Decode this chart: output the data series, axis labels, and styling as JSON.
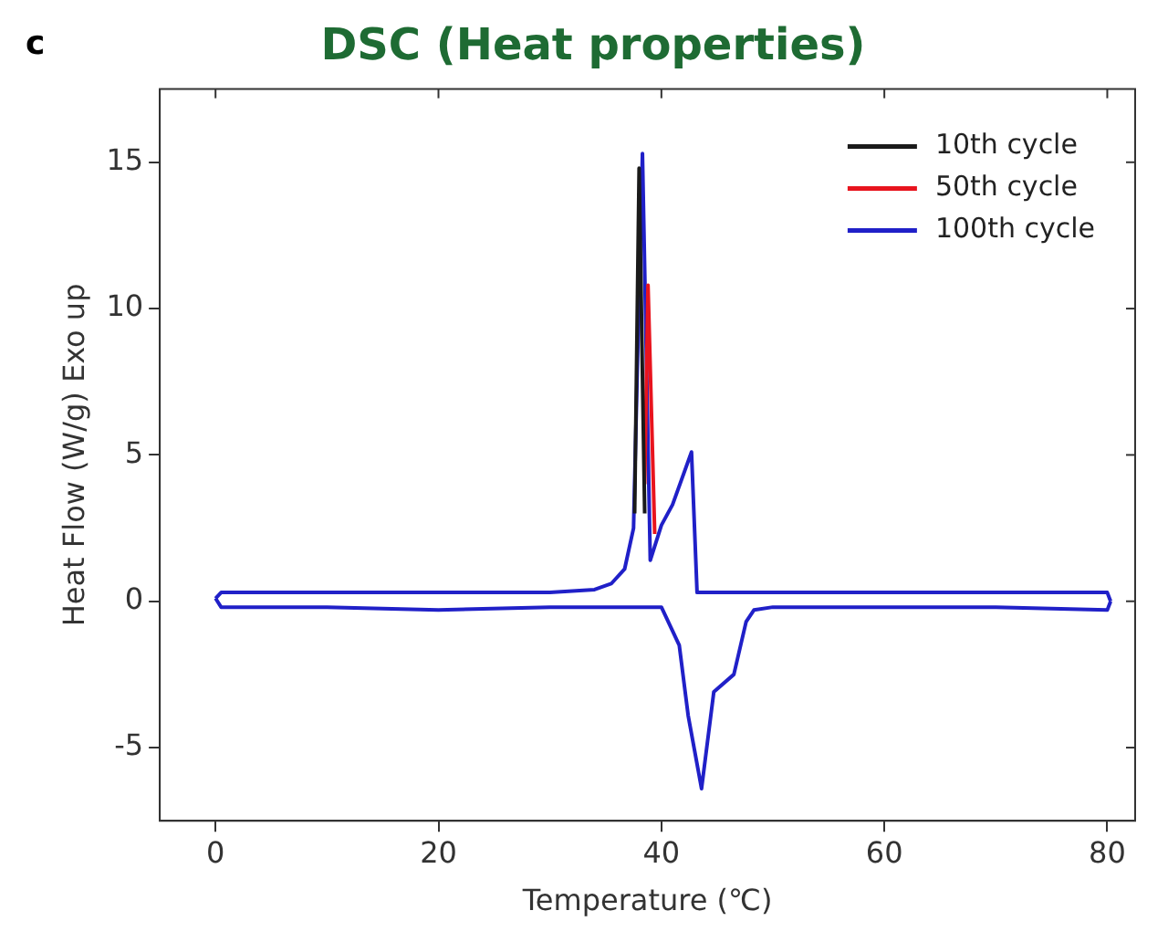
{
  "chart_data": {
    "type": "line",
    "title": "DSC (Heat properties)",
    "xlabel": "Temperature (℃)",
    "ylabel": "Heat Flow (W/g) Exo up",
    "annotations": [
      "c"
    ],
    "xlim": [
      -5,
      82.5
    ],
    "ylim": [
      -7.5,
      17.5
    ],
    "xticks": [
      0,
      20,
      40,
      60,
      80
    ],
    "yticks": [
      -5,
      0,
      5,
      10,
      15
    ],
    "grid": false,
    "legend": "top right",
    "marker": "none",
    "line_style": "solid",
    "series": [
      {
        "name": "10th cycle",
        "color": "#1a1a1a",
        "x": [
          37.6,
          38.0,
          38.5
        ],
        "values": [
          3.0,
          14.8,
          3.0
        ]
      },
      {
        "name": "50th cycle",
        "color": "#e8141e",
        "x": [
          38.5,
          38.8,
          39.4
        ],
        "values": [
          4.0,
          10.8,
          2.3
        ]
      },
      {
        "name": "100th cycle",
        "color": "#2020c8",
        "x": [
          0,
          0.5,
          10,
          20,
          30,
          34,
          35.5,
          36.7,
          37.5,
          38.3,
          39.0,
          40,
          41,
          42.7,
          43.2,
          50,
          60,
          70,
          80,
          80.3
        ],
        "values": [
          0.1,
          0.3,
          0.3,
          0.3,
          0.3,
          0.4,
          0.6,
          1.1,
          2.5,
          15.3,
          1.4,
          2.6,
          3.3,
          5.1,
          0.3,
          0.3,
          0.3,
          0.3,
          0.3,
          0.0
        ]
      },
      {
        "color": "#2020c8",
        "x": [
          0,
          0.5,
          10,
          20,
          30,
          40,
          41.6,
          42.4,
          43.6,
          44.7,
          46.5,
          47.6,
          48.3,
          50,
          60,
          70,
          80,
          80.3
        ],
        "values": [
          0.1,
          -0.2,
          -0.2,
          -0.3,
          -0.2,
          -0.2,
          -1.5,
          -3.9,
          -6.4,
          -3.1,
          -2.5,
          -0.7,
          -0.3,
          -0.2,
          -0.2,
          -0.2,
          -0.3,
          0.0
        ]
      }
    ]
  }
}
